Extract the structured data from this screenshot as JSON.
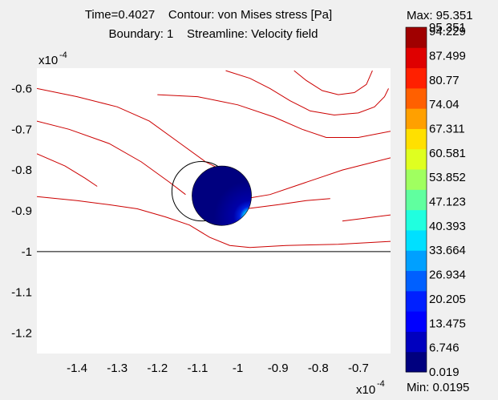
{
  "title_line1": "Time=0.4027    Contour: von Mises stress [Pa]",
  "title_line2": "Boundary: 1    Streamline: Velocity field",
  "chart_data": {
    "type": "contour",
    "x_exponent_label": "x10",
    "x_exponent": "-4",
    "y_exponent_label": "x10",
    "y_exponent": "-4",
    "xlim": [
      -1.5,
      -0.62
    ],
    "ylim": [
      -1.25,
      -0.55
    ],
    "x_ticks": [
      -1.4,
      -1.3,
      -1.2,
      -1.1,
      -1,
      -0.9,
      -0.8,
      -0.7
    ],
    "x_tick_labels": [
      "-1.4",
      "-1.3",
      "-1.2",
      "-1.1",
      "-1",
      "-0.9",
      "-0.8",
      "-0.7"
    ],
    "y_ticks": [
      -0.6,
      -0.7,
      -0.8,
      -0.9,
      -1,
      -1.1,
      -1.2
    ],
    "y_tick_labels": [
      "-0.6",
      "-0.7",
      "-0.8",
      "-0.9",
      "-1",
      "-1.1",
      "-1.2"
    ],
    "boundary_line_y": -1.0,
    "streamline_color": "#cc0000",
    "streamlines": [
      [
        [
          -1.5,
          -0.6
        ],
        [
          -1.4,
          -0.62
        ],
        [
          -1.3,
          -0.645
        ],
        [
          -1.22,
          -0.68
        ],
        [
          -1.15,
          -0.73
        ],
        [
          -1.08,
          -0.78
        ],
        [
          -1.04,
          -0.8
        ]
      ],
      [
        [
          -1.5,
          -0.68
        ],
        [
          -1.42,
          -0.7
        ],
        [
          -1.32,
          -0.735
        ],
        [
          -1.24,
          -0.78
        ],
        [
          -1.17,
          -0.83
        ],
        [
          -1.13,
          -0.86
        ]
      ],
      [
        [
          -1.5,
          -0.76
        ],
        [
          -1.43,
          -0.79
        ],
        [
          -1.38,
          -0.82
        ],
        [
          -1.35,
          -0.84
        ]
      ],
      [
        [
          -1.5,
          -0.865
        ],
        [
          -1.4,
          -0.875
        ],
        [
          -1.32,
          -0.885
        ],
        [
          -1.25,
          -0.895
        ],
        [
          -1.18,
          -0.915
        ],
        [
          -1.12,
          -0.935
        ],
        [
          -1.07,
          -0.965
        ],
        [
          -1.02,
          -0.985
        ],
        [
          -0.97,
          -0.99
        ],
        [
          -0.88,
          -0.985
        ],
        [
          -0.75,
          -0.982
        ],
        [
          -0.62,
          -0.975
        ]
      ],
      [
        [
          -1.2,
          -0.615
        ],
        [
          -1.1,
          -0.62
        ],
        [
          -1.0,
          -0.64
        ],
        [
          -0.91,
          -0.67
        ],
        [
          -0.84,
          -0.7
        ],
        [
          -0.78,
          -0.72
        ],
        [
          -0.7,
          -0.72
        ],
        [
          -0.62,
          -0.705
        ]
      ],
      [
        [
          -1.03,
          -0.556
        ],
        [
          -0.97,
          -0.575
        ],
        [
          -0.92,
          -0.6
        ],
        [
          -0.87,
          -0.63
        ],
        [
          -0.82,
          -0.655
        ],
        [
          -0.76,
          -0.665
        ],
        [
          -0.7,
          -0.66
        ],
        [
          -0.66,
          -0.645
        ],
        [
          -0.635,
          -0.62
        ],
        [
          -0.625,
          -0.6
        ]
      ],
      [
        [
          -0.86,
          -0.556
        ],
        [
          -0.83,
          -0.58
        ],
        [
          -0.79,
          -0.605
        ],
        [
          -0.75,
          -0.615
        ],
        [
          -0.71,
          -0.61
        ],
        [
          -0.68,
          -0.59
        ],
        [
          -0.665,
          -0.556
        ]
      ],
      [
        [
          -0.98,
          -0.87
        ],
        [
          -0.92,
          -0.86
        ],
        [
          -0.86,
          -0.84
        ],
        [
          -0.8,
          -0.82
        ],
        [
          -0.74,
          -0.8
        ],
        [
          -0.68,
          -0.785
        ],
        [
          -0.62,
          -0.77
        ]
      ],
      [
        [
          -0.98,
          -0.895
        ],
        [
          -0.9,
          -0.885
        ],
        [
          -0.83,
          -0.875
        ],
        [
          -0.77,
          -0.87
        ]
      ],
      [
        [
          -0.74,
          -0.925
        ],
        [
          -0.7,
          -0.92
        ],
        [
          -0.66,
          -0.915
        ],
        [
          -0.62,
          -0.91
        ]
      ]
    ],
    "outline_circle": {
      "cx": -1.09,
      "cy": -0.852,
      "r": 0.074
    },
    "particle": {
      "cx": -1.04,
      "cy": -0.863,
      "r": 0.074
    },
    "hotspot": {
      "cx": -0.97,
      "cy": -0.915
    },
    "colorbar": {
      "max_label": "Max: 95.351",
      "min_label": "Min: 0.0195",
      "range": [
        0.0195,
        95.351
      ],
      "tick_labels": [
        "95.351",
        "94.229",
        "87.499",
        "80.77",
        "74.04",
        "67.311",
        "60.581",
        "53.852",
        "47.123",
        "40.393",
        "33.664",
        "26.934",
        "20.205",
        "13.475",
        "6.746",
        "0.019"
      ],
      "colors": [
        "#00007f",
        "#0000bf",
        "#0000ff",
        "#0020ff",
        "#0060ff",
        "#00a0ff",
        "#00e0ff",
        "#20ffdf",
        "#60ff9f",
        "#a0ff60",
        "#dfff20",
        "#ffe000",
        "#ffa000",
        "#ff6000",
        "#ff2000",
        "#df0000",
        "#a00000"
      ]
    }
  }
}
